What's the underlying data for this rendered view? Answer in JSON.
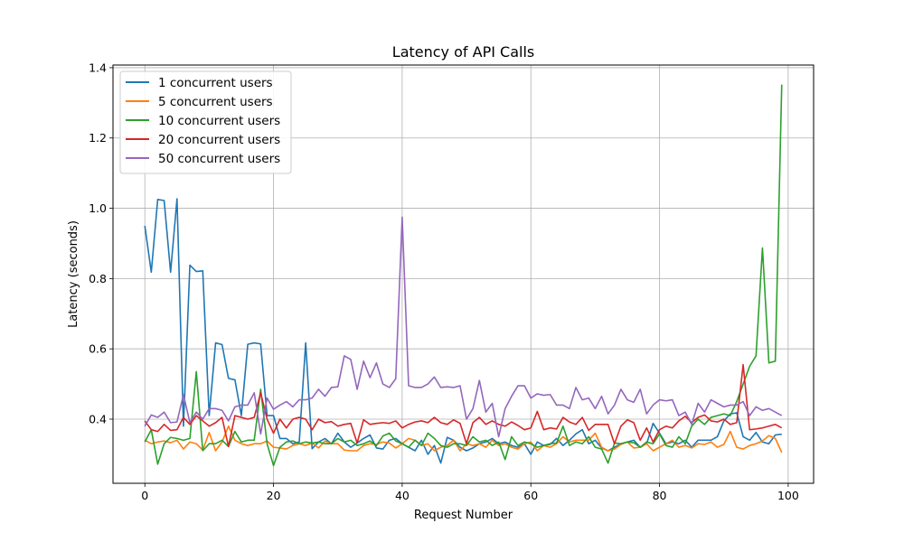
{
  "chart_data": {
    "type": "line",
    "title": "Latency of API Calls",
    "xlabel": "Request Number",
    "ylabel": "Latency (seconds)",
    "xlim": [
      -4.95,
      103.95
    ],
    "ylim": [
      0.2175,
      1.4075
    ],
    "x_ticks": [
      0,
      20,
      40,
      60,
      80,
      100
    ],
    "y_ticks": [
      0.4,
      0.6,
      0.8,
      1.0,
      1.2,
      1.4
    ],
    "x_tick_labels": [
      "0",
      "20",
      "40",
      "60",
      "80",
      "100"
    ],
    "y_tick_labels": [
      "0.4",
      "0.6",
      "0.8",
      "1.0",
      "1.2",
      "1.4"
    ],
    "grid": true,
    "legend_position": "top-left",
    "series": [
      {
        "name": "1 concurrent users",
        "color": "#1f77b4",
        "values": [
          0.95,
          0.818,
          1.025,
          1.022,
          0.818,
          1.027,
          0.38,
          0.838,
          0.82,
          0.822,
          0.41,
          0.617,
          0.612,
          0.516,
          0.512,
          0.41,
          0.613,
          0.617,
          0.614,
          0.41,
          0.41,
          0.345,
          0.345,
          0.33,
          0.335,
          0.617,
          0.316,
          0.335,
          0.345,
          0.33,
          0.36,
          0.335,
          0.32,
          0.332,
          0.345,
          0.355,
          0.318,
          0.315,
          0.34,
          0.345,
          0.33,
          0.32,
          0.31,
          0.34,
          0.3,
          0.325,
          0.275,
          0.348,
          0.34,
          0.32,
          0.31,
          0.318,
          0.33,
          0.335,
          0.345,
          0.33,
          0.335,
          0.325,
          0.32,
          0.33,
          0.3,
          0.335,
          0.325,
          0.328,
          0.345,
          0.325,
          0.34,
          0.358,
          0.37,
          0.33,
          0.34,
          0.318,
          0.31,
          0.32,
          0.33,
          0.335,
          0.34,
          0.32,
          0.33,
          0.388,
          0.36,
          0.33,
          0.335,
          0.33,
          0.34,
          0.32,
          0.34,
          0.34,
          0.34,
          0.35,
          0.395,
          0.415,
          0.418,
          0.35,
          0.34,
          0.362,
          0.335,
          0.33,
          0.355,
          0.357
        ]
      },
      {
        "name": "5 concurrent users",
        "color": "#ff7f0e",
        "values": [
          0.34,
          0.33,
          0.335,
          0.338,
          0.333,
          0.34,
          0.315,
          0.335,
          0.33,
          0.312,
          0.362,
          0.31,
          0.335,
          0.38,
          0.34,
          0.33,
          0.325,
          0.33,
          0.33,
          0.338,
          0.32,
          0.318,
          0.315,
          0.325,
          0.33,
          0.325,
          0.332,
          0.318,
          0.338,
          0.33,
          0.33,
          0.312,
          0.31,
          0.31,
          0.325,
          0.33,
          0.328,
          0.335,
          0.332,
          0.318,
          0.33,
          0.345,
          0.34,
          0.325,
          0.33,
          0.31,
          0.32,
          0.325,
          0.34,
          0.31,
          0.33,
          0.325,
          0.33,
          0.32,
          0.34,
          0.325,
          0.33,
          0.32,
          0.315,
          0.33,
          0.335,
          0.31,
          0.325,
          0.32,
          0.33,
          0.35,
          0.335,
          0.34,
          0.34,
          0.34,
          0.36,
          0.32,
          0.31,
          0.315,
          0.328,
          0.335,
          0.318,
          0.32,
          0.33,
          0.31,
          0.32,
          0.33,
          0.34,
          0.32,
          0.325,
          0.318,
          0.33,
          0.328,
          0.335,
          0.32,
          0.328,
          0.365,
          0.32,
          0.315,
          0.325,
          0.33,
          0.338,
          0.353,
          0.345,
          0.305
        ]
      },
      {
        "name": "10 concurrent users",
        "color": "#2ca02c",
        "values": [
          0.335,
          0.37,
          0.272,
          0.33,
          0.348,
          0.345,
          0.34,
          0.345,
          0.535,
          0.31,
          0.33,
          0.33,
          0.34,
          0.322,
          0.365,
          0.335,
          0.34,
          0.34,
          0.485,
          0.33,
          0.268,
          0.32,
          0.335,
          0.338,
          0.33,
          0.335,
          0.332,
          0.335,
          0.33,
          0.33,
          0.345,
          0.335,
          0.34,
          0.325,
          0.33,
          0.338,
          0.325,
          0.352,
          0.36,
          0.338,
          0.33,
          0.32,
          0.34,
          0.325,
          0.36,
          0.345,
          0.325,
          0.32,
          0.33,
          0.33,
          0.325,
          0.35,
          0.335,
          0.34,
          0.325,
          0.335,
          0.285,
          0.35,
          0.325,
          0.335,
          0.33,
          0.32,
          0.325,
          0.33,
          0.332,
          0.38,
          0.325,
          0.335,
          0.33,
          0.35,
          0.32,
          0.315,
          0.275,
          0.332,
          0.33,
          0.335,
          0.333,
          0.32,
          0.335,
          0.33,
          0.358,
          0.325,
          0.32,
          0.35,
          0.33,
          0.38,
          0.4,
          0.385,
          0.405,
          0.41,
          0.415,
          0.41,
          0.45,
          0.5,
          0.55,
          0.58,
          0.887,
          0.56,
          0.565,
          1.352
        ]
      },
      {
        "name": "20 concurrent users",
        "color": "#d62728",
        "values": [
          0.395,
          0.37,
          0.365,
          0.385,
          0.368,
          0.37,
          0.405,
          0.385,
          0.41,
          0.395,
          0.38,
          0.39,
          0.405,
          0.322,
          0.41,
          0.405,
          0.4,
          0.405,
          0.475,
          0.4,
          0.36,
          0.4,
          0.375,
          0.4,
          0.405,
          0.4,
          0.37,
          0.4,
          0.39,
          0.393,
          0.38,
          0.385,
          0.388,
          0.332,
          0.398,
          0.385,
          0.388,
          0.39,
          0.388,
          0.395,
          0.375,
          0.385,
          0.392,
          0.395,
          0.39,
          0.405,
          0.39,
          0.385,
          0.398,
          0.388,
          0.33,
          0.39,
          0.405,
          0.385,
          0.395,
          0.385,
          0.38,
          0.392,
          0.382,
          0.37,
          0.375,
          0.422,
          0.37,
          0.375,
          0.372,
          0.405,
          0.392,
          0.385,
          0.405,
          0.368,
          0.385,
          0.385,
          0.385,
          0.33,
          0.38,
          0.398,
          0.39,
          0.34,
          0.375,
          0.335,
          0.37,
          0.38,
          0.375,
          0.395,
          0.408,
          0.39,
          0.405,
          0.412,
          0.395,
          0.392,
          0.4,
          0.385,
          0.39,
          0.555,
          0.37,
          0.372,
          0.375,
          0.38,
          0.385,
          0.375
        ]
      },
      {
        "name": "50 concurrent users",
        "color": "#9467bd",
        "values": [
          0.38,
          0.412,
          0.405,
          0.42,
          0.39,
          0.392,
          0.47,
          0.39,
          0.42,
          0.4,
          0.43,
          0.43,
          0.425,
          0.395,
          0.435,
          0.44,
          0.44,
          0.475,
          0.358,
          0.46,
          0.428,
          0.44,
          0.45,
          0.435,
          0.455,
          0.455,
          0.46,
          0.485,
          0.465,
          0.49,
          0.492,
          0.58,
          0.57,
          0.485,
          0.565,
          0.518,
          0.56,
          0.5,
          0.49,
          0.515,
          0.975,
          0.495,
          0.49,
          0.49,
          0.5,
          0.52,
          0.49,
          0.492,
          0.49,
          0.495,
          0.4,
          0.43,
          0.51,
          0.42,
          0.445,
          0.35,
          0.43,
          0.465,
          0.495,
          0.495,
          0.46,
          0.472,
          0.468,
          0.47,
          0.44,
          0.44,
          0.43,
          0.49,
          0.455,
          0.46,
          0.43,
          0.465,
          0.415,
          0.44,
          0.485,
          0.455,
          0.448,
          0.485,
          0.415,
          0.44,
          0.455,
          0.452,
          0.455,
          0.41,
          0.42,
          0.385,
          0.445,
          0.42,
          0.455,
          0.445,
          0.435,
          0.44,
          0.44,
          0.45,
          0.41,
          0.435,
          0.425,
          0.43,
          0.42,
          0.41
        ]
      }
    ]
  }
}
